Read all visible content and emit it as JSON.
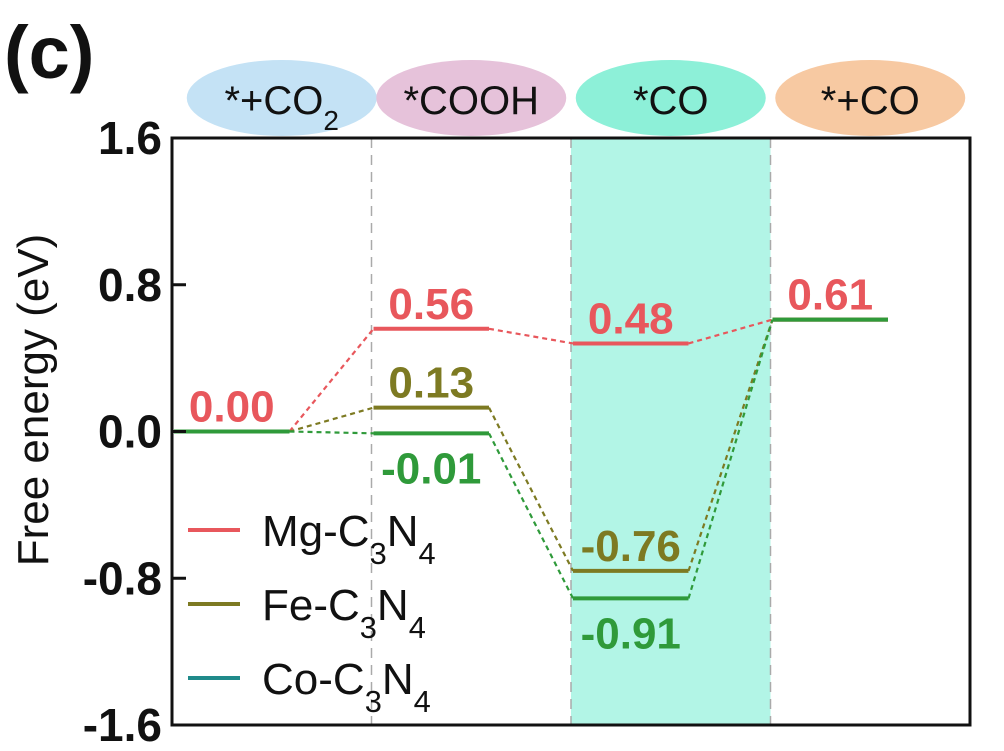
{
  "panel_label": "(c)",
  "chart_data": {
    "type": "line",
    "ylabel": "Free energy (eV)",
    "xlabel": "",
    "ylim": [
      -1.6,
      1.6
    ],
    "yticks": [
      "1.6",
      "0.8",
      "0.0",
      "-0.8",
      "-1.6"
    ],
    "ytick_values": [
      1.6,
      0.8,
      0.0,
      -0.8,
      -1.6
    ],
    "grid": false,
    "legend_position": "bottom-left",
    "steps": [
      {
        "main": "*+CO",
        "sub": "2",
        "color": "#c4e2f5"
      },
      {
        "main": "*COOH",
        "sub": "",
        "color": "#e6c2da"
      },
      {
        "main": "*CO",
        "sub": "",
        "color": "#8df0d8"
      },
      {
        "main": "*+CO",
        "sub": "",
        "color": "#f7c9a2"
      }
    ],
    "highlight_step": 2,
    "highlight_color": "#b2f5e6",
    "series": [
      {
        "name_main": "Mg-C",
        "name_sub1": "3",
        "name_mid": "N",
        "name_sub2": "4",
        "color": "#e8575c",
        "label_color": "#e8575c",
        "legend_color": "#e8575c",
        "values": [
          0.0,
          0.56,
          0.48,
          0.61
        ],
        "labels": [
          "0.00",
          "0.56",
          "0.48",
          "0.61"
        ],
        "label_pos": [
          "above",
          "above",
          "above",
          "above"
        ]
      },
      {
        "name_main": "Fe-C",
        "name_sub1": "3",
        "name_mid": "N",
        "name_sub2": "4",
        "color": "#7d7a22",
        "label_color": "#7d7a22",
        "legend_color": "#7d7a22",
        "values": [
          0.0,
          0.13,
          -0.76,
          0.61
        ],
        "labels": [
          "",
          "0.13",
          "-0.76",
          ""
        ],
        "label_pos": [
          "above",
          "above",
          "above",
          "above"
        ]
      },
      {
        "name_main": "Co-C",
        "name_sub1": "3",
        "name_mid": "N",
        "name_sub2": "4",
        "color": "#2f9a3a",
        "label_color": "#2f9a3a",
        "legend_color": "#1f8a8a",
        "values": [
          0.0,
          -0.01,
          -0.91,
          0.61
        ],
        "labels": [
          "",
          "-0.01",
          "-0.91",
          ""
        ],
        "label_pos": [
          "below",
          "below",
          "below",
          "below"
        ]
      }
    ]
  }
}
